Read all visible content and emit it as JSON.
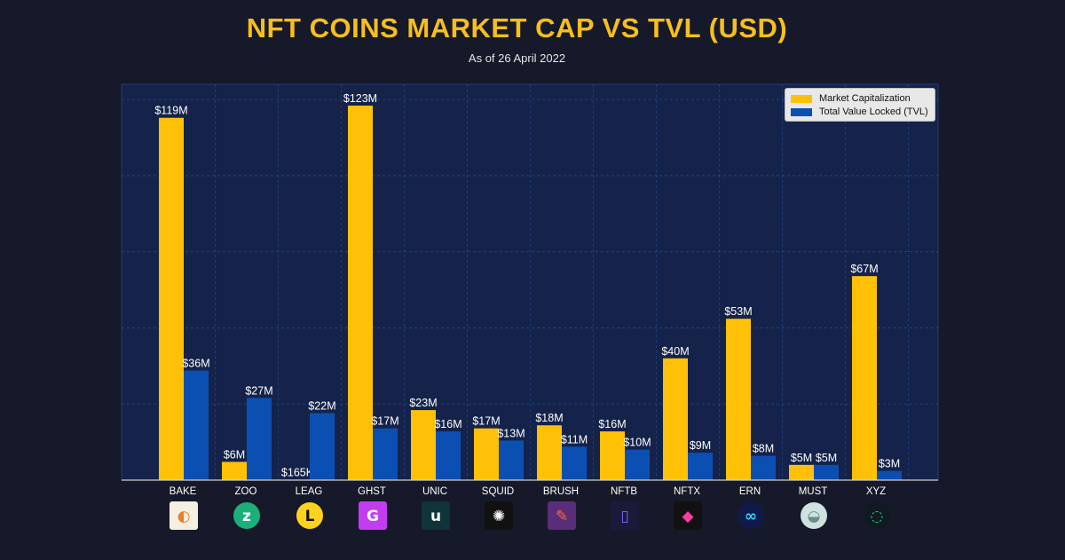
{
  "header": {
    "title": "NFT COINS MARKET CAP VS TVL (USD)",
    "subtitle": "As of 26 April 2022"
  },
  "colors": {
    "background": "#161929",
    "plot_background": "#15234a",
    "market_cap": "#ffc107",
    "tvl": "#0b4fb3",
    "title": "#f7be1d",
    "gridline": "#2a5aa6"
  },
  "chart_data": {
    "type": "bar",
    "categories": [
      "BAKE",
      "ZOO",
      "LEAG",
      "GHST",
      "UNIC",
      "SQUID",
      "BRUSH",
      "NFTB",
      "NFTX",
      "ERN",
      "MUST",
      "XYZ"
    ],
    "category_icons": [
      "bake-icon",
      "zoo-icon",
      "leag-icon",
      "ghst-icon",
      "unic-icon",
      "squid-icon",
      "brush-icon",
      "nftb-icon",
      "nftx-icon",
      "ern-icon",
      "must-icon",
      "xyz-icon"
    ],
    "series": [
      {
        "name": "Market Capitalization",
        "values": [
          119,
          6,
          0.165,
          123,
          23,
          17,
          18,
          16,
          40,
          53,
          5,
          67
        ],
        "labels": [
          "$119M",
          "$6M",
          "$165K",
          "$123M",
          "$23M",
          "$17M",
          "$18M",
          "$16M",
          "$40M",
          "$53M",
          "$5M",
          "$67M"
        ]
      },
      {
        "name": "Total Value Locked (TVL)",
        "values": [
          36,
          27,
          22,
          17,
          16,
          13,
          11,
          10,
          9,
          8,
          5,
          3
        ],
        "labels": [
          "$36M",
          "$27M",
          "$22M",
          "$17M",
          "$16M",
          "$13M",
          "$11M",
          "$10M",
          "$9M",
          "$8M",
          "$5M",
          "$3M"
        ]
      }
    ],
    "unit": "USD millions",
    "ylim": [
      0,
      130
    ],
    "grid": true,
    "legend_position": "top-right",
    "xlabel": "",
    "ylabel": ""
  }
}
